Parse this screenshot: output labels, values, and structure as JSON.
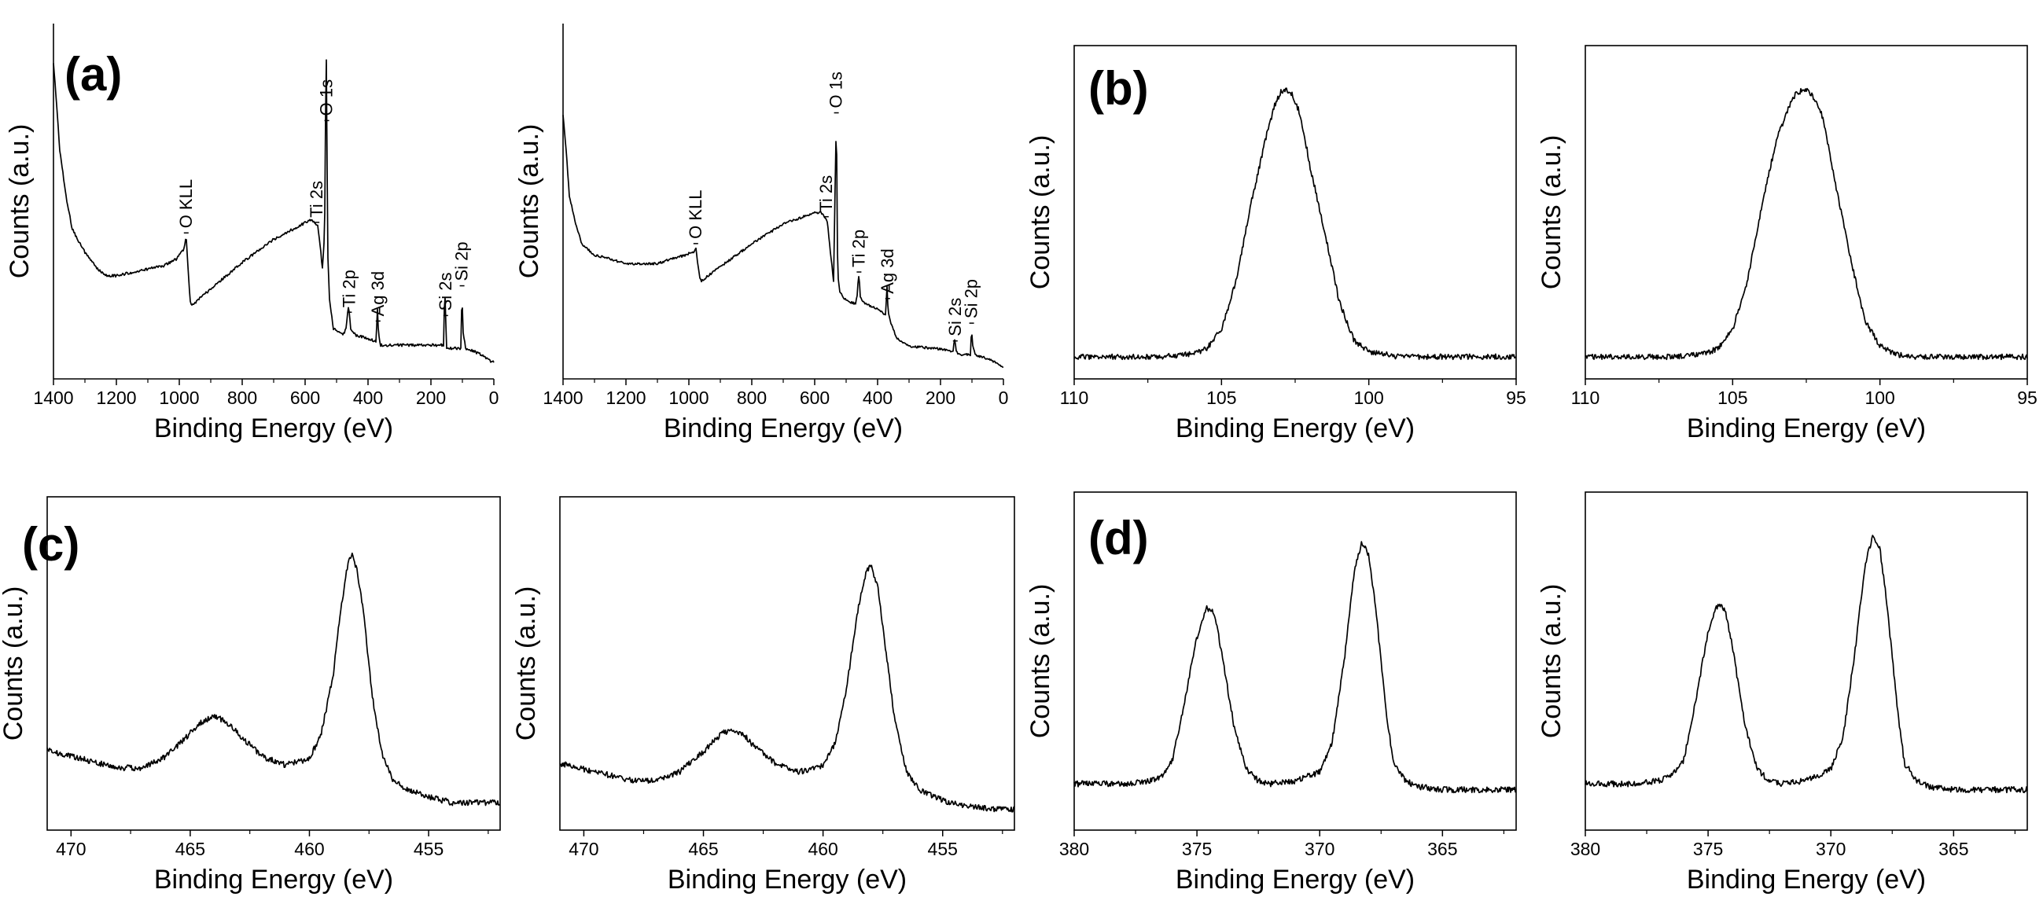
{
  "panel_labels": {
    "a": "(a)",
    "b": "(b)",
    "c": "(c)",
    "d": "(d)"
  },
  "axis_titles": {
    "x": "Binding Energy (eV)",
    "y": "Counts (a.u.)"
  },
  "chart_data": [
    {
      "type": "line",
      "panel": "(a)",
      "frame": "L",
      "xlabel": "Binding Energy (eV)",
      "ylabel": "Counts (a.u.)",
      "xlim": [
        1400,
        0
      ],
      "ylim": [
        0,
        100
      ],
      "xticks": [
        1400,
        1200,
        1000,
        800,
        600,
        400,
        200,
        0
      ],
      "series": [
        {
          "x": [
            1400,
            1390,
            1380,
            1360,
            1340,
            1300,
            1260,
            1230,
            1200,
            1150,
            1100,
            1050,
            1010,
            995,
            985,
            978,
            972,
            965,
            960,
            900,
            800,
            700,
            600,
            580,
            560,
            550,
            545,
            538,
            533,
            528,
            522,
            510,
            480,
            470,
            462,
            455,
            440,
            400,
            375,
            370,
            367,
            364,
            360,
            340,
            300,
            200,
            160,
            156,
            152,
            150,
            140,
            110,
            105,
            101,
            99,
            90,
            60,
            40,
            20,
            10,
            5,
            0
          ],
          "y": [
            92,
            80,
            66,
            52,
            42,
            35,
            30,
            28,
            28,
            29,
            30,
            31,
            33,
            35,
            36,
            40,
            30,
            20,
            19,
            24,
            32,
            39,
            44,
            45,
            43,
            35,
            30,
            41,
            100,
            35,
            20,
            12,
            10,
            12,
            19,
            12,
            10,
            9,
            8,
            18,
            11,
            9,
            7,
            7,
            7,
            7,
            7,
            24,
            12,
            6,
            6,
            6,
            6,
            24,
            12,
            6,
            5,
            4,
            3,
            2,
            2,
            2
          ]
        }
      ],
      "annotations": [
        {
          "text": "O KLL",
          "x": 978
        },
        {
          "text": "Ti 2s",
          "x": 562
        },
        {
          "text": "O 1s",
          "x": 531
        },
        {
          "text": "Ti 2p",
          "x": 459
        },
        {
          "text": "Ag 3d",
          "x": 368
        },
        {
          "text": "Si 2s",
          "x": 153
        },
        {
          "text": "Si 2p",
          "x": 101
        }
      ]
    },
    {
      "type": "line",
      "panel": "(a)",
      "frame": "L",
      "xlabel": "Binding Energy (eV)",
      "ylabel": "Counts (a.u.)",
      "xlim": [
        1400,
        0
      ],
      "ylim": [
        0,
        100
      ],
      "xticks": [
        1400,
        1200,
        1000,
        800,
        600,
        400,
        200,
        0
      ],
      "series": [
        {
          "x": [
            1400,
            1390,
            1380,
            1360,
            1340,
            1300,
            1260,
            1200,
            1150,
            1100,
            1050,
            1010,
            995,
            985,
            978,
            972,
            965,
            960,
            900,
            800,
            700,
            600,
            580,
            560,
            550,
            540,
            535,
            531,
            527,
            520,
            500,
            470,
            465,
            462,
            459,
            455,
            440,
            400,
            375,
            370,
            367,
            364,
            360,
            340,
            300,
            200,
            160,
            156,
            152,
            150,
            140,
            110,
            105,
            101,
            99,
            90,
            60,
            40,
            20,
            10,
            5,
            0
          ],
          "y": [
            90,
            78,
            62,
            52,
            45,
            41,
            40,
            38,
            38,
            38,
            40,
            41,
            42,
            42,
            44,
            38,
            33,
            32,
            37,
            45,
            52,
            56,
            56,
            53,
            42,
            32,
            65,
            90,
            35,
            28,
            25,
            24,
            27,
            32,
            34,
            26,
            24,
            22,
            20,
            30,
            22,
            20,
            18,
            12,
            9,
            8,
            7,
            12,
            9,
            7,
            6,
            6,
            6,
            16,
            10,
            6,
            5,
            4,
            3,
            2,
            2,
            2
          ]
        }
      ],
      "annotations": [
        {
          "text": "O KLL",
          "x": 978
        },
        {
          "text": "Ti 2s",
          "x": 563
        },
        {
          "text": "O 1s",
          "x": 531
        },
        {
          "text": "Ti 2p",
          "x": 459
        },
        {
          "text": "Ag 3d",
          "x": 368
        },
        {
          "text": "Si 2s",
          "x": 153
        },
        {
          "text": "Si 2p",
          "x": 101
        }
      ]
    },
    {
      "type": "line",
      "panel": "(b)",
      "frame": "box",
      "xlabel": "Binding Energy (eV)",
      "ylabel": "Counts (a.u.)",
      "xlim": [
        110,
        95
      ],
      "ylim": [
        0,
        110
      ],
      "xticks": [
        110,
        105,
        100,
        95
      ],
      "series": [
        {
          "x": [
            110,
            108,
            107,
            106,
            105.5,
            105,
            104.5,
            104,
            103.5,
            103.2,
            103,
            102.8,
            102.6,
            102.4,
            102.2,
            102,
            101.5,
            101,
            100.5,
            100,
            99.5,
            99,
            98,
            97,
            96,
            95
          ],
          "y": [
            2,
            2,
            2,
            3,
            5,
            12,
            30,
            58,
            82,
            94,
            99,
            100,
            98,
            93,
            84,
            72,
            48,
            22,
            8,
            4,
            3,
            2,
            2,
            2,
            2,
            2
          ]
        }
      ]
    },
    {
      "type": "line",
      "panel": "(b)",
      "frame": "box",
      "xlabel": "Binding Energy (eV)",
      "ylabel": "Counts (a.u.)",
      "xlim": [
        110,
        95
      ],
      "ylim": [
        0,
        110
      ],
      "xticks": [
        110,
        105,
        100,
        95
      ],
      "series": [
        {
          "x": [
            110,
            108,
            107,
            106,
            105.5,
            105,
            104.5,
            104,
            103.5,
            103,
            102.8,
            102.5,
            102.3,
            102,
            101.8,
            101.5,
            101,
            100.5,
            100,
            99.5,
            99,
            98,
            97,
            96,
            95
          ],
          "y": [
            2,
            2,
            2,
            3,
            5,
            12,
            30,
            58,
            82,
            96,
            99,
            100,
            98,
            92,
            82,
            65,
            38,
            15,
            6,
            3,
            2,
            2,
            2,
            2,
            2
          ]
        }
      ]
    },
    {
      "type": "line",
      "panel": "(c)",
      "frame": "box",
      "xlabel": "Binding Energy (eV)",
      "ylabel": "Counts (a.u.)",
      "xlim": [
        471,
        452
      ],
      "ylim": [
        0,
        100
      ],
      "xticks": [
        470,
        465,
        460,
        455
      ],
      "series": [
        {
          "x": [
            471,
            470,
            469,
            468,
            467,
            466,
            465,
            464.5,
            464,
            463.5,
            463,
            462,
            461,
            460,
            459.5,
            459,
            458.7,
            458.4,
            458.2,
            458,
            457.7,
            457.4,
            457,
            456.5,
            456,
            455,
            454,
            453,
            452
          ],
          "y": [
            24,
            22,
            20,
            18,
            18,
            22,
            30,
            34,
            36,
            34,
            30,
            22,
            19,
            21,
            30,
            50,
            72,
            88,
            92,
            86,
            70,
            45,
            24,
            14,
            11,
            8,
            6,
            6,
            6
          ]
        }
      ]
    },
    {
      "type": "line",
      "panel": "(c)",
      "frame": "box",
      "xlabel": "Binding Energy (eV)",
      "ylabel": "Counts (a.u.)",
      "xlim": [
        471,
        452
      ],
      "ylim": [
        0,
        100
      ],
      "xticks": [
        470,
        465,
        460,
        455
      ],
      "series": [
        {
          "x": [
            471,
            470,
            469,
            468,
            467,
            466,
            465,
            464.3,
            463.8,
            463.3,
            463,
            462,
            461,
            460,
            459.5,
            459,
            458.6,
            458.2,
            458,
            457.7,
            457.4,
            457,
            456.5,
            456,
            455,
            454,
            453,
            452
          ],
          "y": [
            21,
            19,
            17,
            15,
            15,
            18,
            25,
            31,
            33,
            31,
            28,
            21,
            18,
            20,
            28,
            48,
            72,
            88,
            90,
            82,
            62,
            36,
            18,
            12,
            8,
            6,
            5,
            5
          ]
        }
      ]
    },
    {
      "type": "line",
      "panel": "(d)",
      "frame": "box",
      "xlabel": "Binding Energy (eV)",
      "ylabel": "Counts (a.u.)",
      "xlim": [
        380,
        362
      ],
      "ylim": [
        0,
        100
      ],
      "xticks": [
        380,
        375,
        370,
        365
      ],
      "series": [
        {
          "x": [
            380,
            378,
            377,
            376.5,
            376,
            375.5,
            375,
            374.6,
            374.3,
            374,
            373.5,
            373,
            372.5,
            372,
            371,
            370,
            369.5,
            369,
            368.6,
            368.3,
            368,
            367.7,
            367.3,
            367,
            366.5,
            366,
            365,
            364,
            362
          ],
          "y": [
            10,
            10,
            11,
            12,
            18,
            38,
            60,
            70,
            68,
            55,
            30,
            15,
            11,
            10,
            11,
            14,
            24,
            52,
            82,
            92,
            88,
            68,
            35,
            17,
            11,
            9,
            8,
            8,
            8
          ]
        }
      ]
    },
    {
      "type": "line",
      "panel": "(d)",
      "frame": "box",
      "xlabel": "Binding Energy (eV)",
      "ylabel": "Counts (a.u.)",
      "xlim": [
        380,
        362
      ],
      "ylim": [
        0,
        100
      ],
      "xticks": [
        380,
        375,
        370,
        365
      ],
      "series": [
        {
          "x": [
            380,
            378,
            377,
            376.5,
            376,
            375.5,
            375,
            374.6,
            374.3,
            374,
            373.5,
            373,
            372.5,
            372,
            371,
            370,
            369.5,
            369,
            368.6,
            368.3,
            368,
            367.7,
            367.3,
            367,
            366.5,
            366,
            365,
            364,
            362
          ],
          "y": [
            10,
            10,
            11,
            13,
            18,
            38,
            62,
            71,
            69,
            56,
            30,
            15,
            11,
            10,
            11,
            15,
            26,
            56,
            85,
            94,
            90,
            70,
            36,
            17,
            11,
            9,
            8,
            8,
            8
          ]
        }
      ]
    }
  ]
}
